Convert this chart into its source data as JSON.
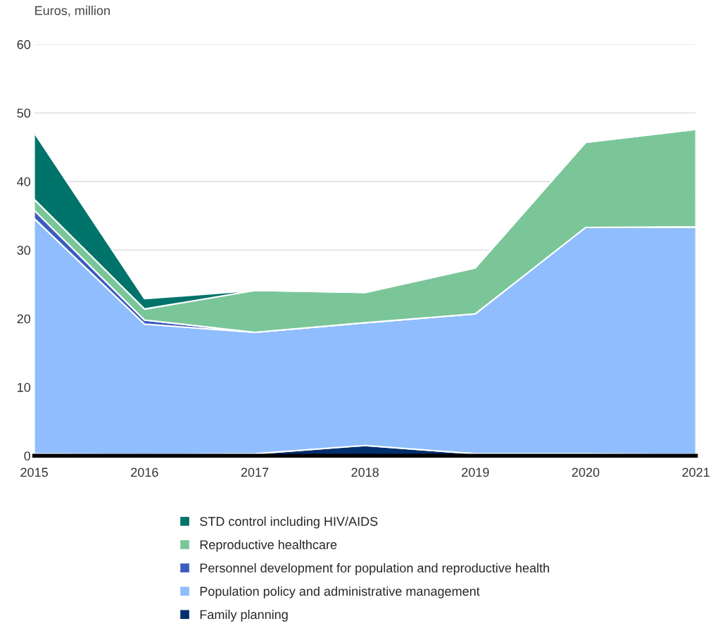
{
  "chart_data": {
    "type": "area",
    "stacked": true,
    "ylabel": "Euros, million",
    "x": [
      2015,
      2016,
      2017,
      2018,
      2019,
      2020,
      2021
    ],
    "xlim": [
      2015,
      2021
    ],
    "xticks": [
      2015,
      2016,
      2017,
      2018,
      2019,
      2020,
      2021
    ],
    "ylim": [
      0,
      60
    ],
    "yticks": [
      0,
      10,
      20,
      30,
      40,
      50,
      60
    ],
    "grid": "y",
    "legend": "bottom",
    "series": [
      {
        "name": "Family planning",
        "color": "#002f6c",
        "values": [
          0.3,
          0.2,
          0.3,
          1.5,
          0.3,
          0.3,
          0.2
        ]
      },
      {
        "name": "Population policy and administrative management",
        "color": "#8fbdfd",
        "values": [
          34.3,
          19.0,
          17.7,
          17.9,
          20.4,
          33.0,
          33.1
        ]
      },
      {
        "name": "Personnel development for population and reproductive health",
        "color": "#3a5bbf",
        "values": [
          1.2,
          0.6,
          0,
          0,
          0,
          0,
          0.1
        ]
      },
      {
        "name": "Reproductive healthcare",
        "color": "#7ac699",
        "values": [
          1.6,
          1.6,
          6.1,
          4.4,
          6.7,
          12.4,
          14.2
        ]
      },
      {
        "name": "STD control including HIV/AIDS",
        "color": "#00736b",
        "values": [
          9.7,
          1.5,
          0,
          0,
          0,
          0,
          0
        ]
      }
    ]
  }
}
